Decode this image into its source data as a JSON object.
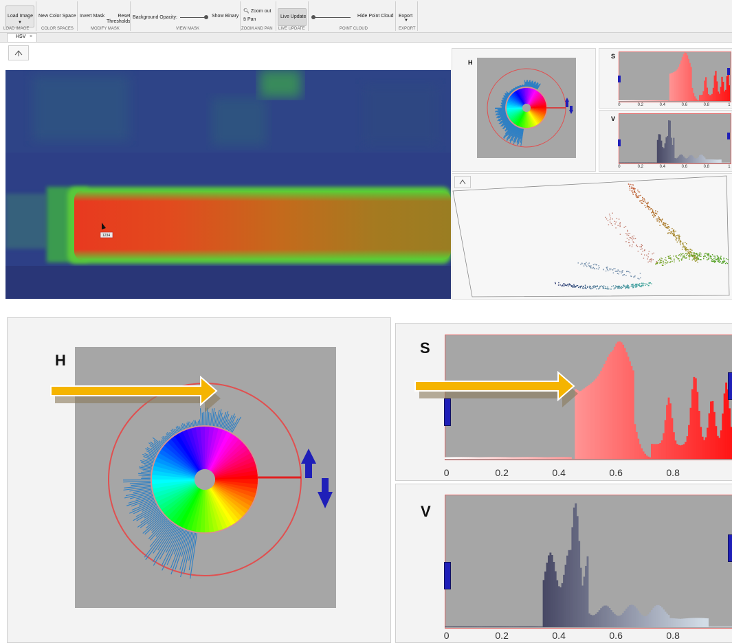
{
  "toolstrip": {
    "load_image": "Load Image",
    "new_color_space": "New Color Space",
    "invert_mask": "Invert Mask",
    "reset_thresholds": "Reset\nThresholds",
    "background_opacity": "Background Opacity:",
    "show_binary": "Show Binary",
    "zoom_out": "Zoom out",
    "pan": "Pan",
    "live_update": "Live Update",
    "hide_point_cloud": "Hide Point Cloud",
    "export": "Export",
    "sections": {
      "load_image": "LOAD IMAGE",
      "color_spaces": "COLOR SPACES",
      "modify_mask": "MODIFY MASK",
      "view_mask": "VIEW MASK",
      "zoom_and_pan": "ZOOM AND PAN",
      "live_update": "LIVE UPDATE",
      "point_cloud": "POINT CLOUD",
      "export": "EXPORT"
    }
  },
  "tabs": [
    {
      "label": "HSV",
      "close": "×"
    }
  ],
  "pixel_tag": "1234",
  "channels": {
    "h": "H",
    "s": "S",
    "v": "V"
  },
  "axis_ticks": [
    "0",
    "0.2",
    "0.4",
    "0.6",
    "0.8",
    "1"
  ],
  "zoom_axis_ticks": [
    "0",
    "0.2",
    "0.4",
    "0.6",
    "0.8"
  ],
  "colors": {
    "accent_arrow": "#f5b400",
    "handle_blue": "#1f1fb8",
    "threshold_red": "#e02020",
    "plot_bg": "#a6a6a6"
  }
}
